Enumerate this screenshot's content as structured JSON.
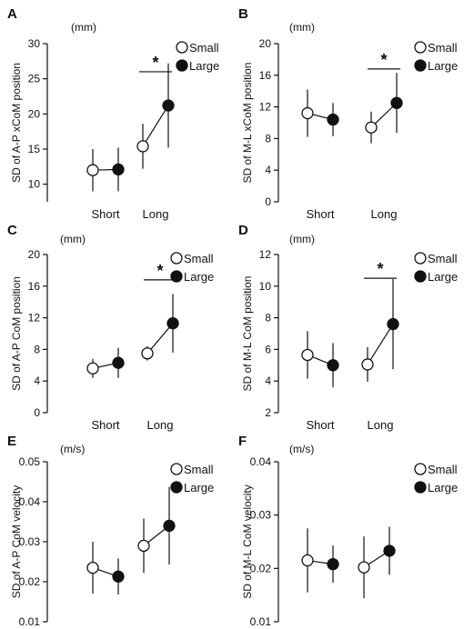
{
  "chart_data": [
    {
      "panel": "A",
      "type": "scatter",
      "unit": "(mm)",
      "ylabel": "SD of A-P xCoM position",
      "categories": [
        "Short",
        "Long"
      ],
      "yticks": [
        10,
        15,
        20,
        25,
        30
      ],
      "ylim": [
        7.5,
        30
      ],
      "series": [
        {
          "name": "Small",
          "fill": "#ffffff",
          "values": [
            12.0,
            15.4
          ],
          "err": [
            3.0,
            3.2
          ]
        },
        {
          "name": "Large",
          "fill": "#111111",
          "values": [
            12.1,
            21.2
          ],
          "err": [
            3.1,
            6.0
          ]
        }
      ],
      "significance": [
        {
          "category": "Long",
          "label": "*",
          "y": 26.0
        }
      ],
      "legend": "top-right"
    },
    {
      "panel": "B",
      "type": "scatter",
      "unit": "(mm)",
      "ylabel": "SD of M-L xCoM position",
      "categories": [
        "Short",
        "Long"
      ],
      "yticks": [
        0,
        4,
        8,
        12,
        16,
        20
      ],
      "ylim": [
        0,
        20
      ],
      "series": [
        {
          "name": "Small",
          "fill": "#ffffff",
          "values": [
            11.2,
            9.4
          ],
          "err": [
            3.0,
            2.0
          ]
        },
        {
          "name": "Large",
          "fill": "#111111",
          "values": [
            10.4,
            12.5
          ],
          "err": [
            2.1,
            3.8
          ]
        }
      ],
      "significance": [
        {
          "category": "Long",
          "label": "*",
          "y": 16.8
        }
      ],
      "legend": "top-right"
    },
    {
      "panel": "C",
      "type": "scatter",
      "unit": "(mm)",
      "ylabel": "SD of A-P  CoM position",
      "categories": [
        "Short",
        "Long"
      ],
      "yticks": [
        0,
        4,
        8,
        12,
        16,
        20
      ],
      "ylim": [
        0,
        20
      ],
      "series": [
        {
          "name": "Small",
          "fill": "#ffffff",
          "values": [
            5.6,
            7.5
          ],
          "err": [
            1.2,
            0.9
          ]
        },
        {
          "name": "Large",
          "fill": "#111111",
          "values": [
            6.3,
            11.3
          ],
          "err": [
            1.9,
            3.7
          ]
        }
      ],
      "significance": [
        {
          "category": "Long",
          "label": "*",
          "y": 16.8
        }
      ],
      "legend": "top-right"
    },
    {
      "panel": "D",
      "type": "scatter",
      "unit": "(mm)",
      "ylabel": "SD of M-L CoM position",
      "categories": [
        "Short",
        "Long"
      ],
      "yticks": [
        2,
        4,
        6,
        8,
        10,
        12
      ],
      "ylim": [
        2,
        12
      ],
      "series": [
        {
          "name": "Small",
          "fill": "#ffffff",
          "values": [
            5.65,
            5.05
          ],
          "err": [
            1.5,
            1.1
          ]
        },
        {
          "name": "Large",
          "fill": "#111111",
          "values": [
            5.0,
            7.6
          ],
          "err": [
            1.4,
            2.85
          ]
        }
      ],
      "significance": [
        {
          "category": "Long",
          "label": "*",
          "y": 10.5
        }
      ],
      "legend": "top-right"
    },
    {
      "panel": "E",
      "type": "scatter",
      "unit": "(m/s)",
      "ylabel": "SD of A-P CoM velocity",
      "categories": [
        "Short",
        "Long"
      ],
      "yticks": [
        0.01,
        0.02,
        0.03,
        0.04,
        0.05
      ],
      "ylim": [
        0.01,
        0.05
      ],
      "series": [
        {
          "name": "Small",
          "fill": "#ffffff",
          "values": [
            0.0235,
            0.029
          ],
          "err": [
            0.0065,
            0.0068
          ]
        },
        {
          "name": "Large",
          "fill": "#111111",
          "values": [
            0.0213,
            0.034
          ],
          "err": [
            0.0045,
            0.0097
          ]
        }
      ],
      "significance": [],
      "legend": "top-right"
    },
    {
      "panel": "F",
      "type": "scatter",
      "unit": "(m/s)",
      "ylabel": "SD of M-L CoM velocity",
      "categories": [
        "Short",
        "Long"
      ],
      "yticks": [
        0.01,
        0.02,
        0.03,
        0.04
      ],
      "ylim": [
        0.01,
        0.04
      ],
      "series": [
        {
          "name": "Small",
          "fill": "#ffffff",
          "values": [
            0.0215,
            0.0202
          ],
          "err": [
            0.006,
            0.0058
          ]
        },
        {
          "name": "Large",
          "fill": "#111111",
          "values": [
            0.0208,
            0.0233
          ],
          "err": [
            0.0035,
            0.0045
          ]
        }
      ],
      "significance": [],
      "legend": "top-right"
    }
  ]
}
